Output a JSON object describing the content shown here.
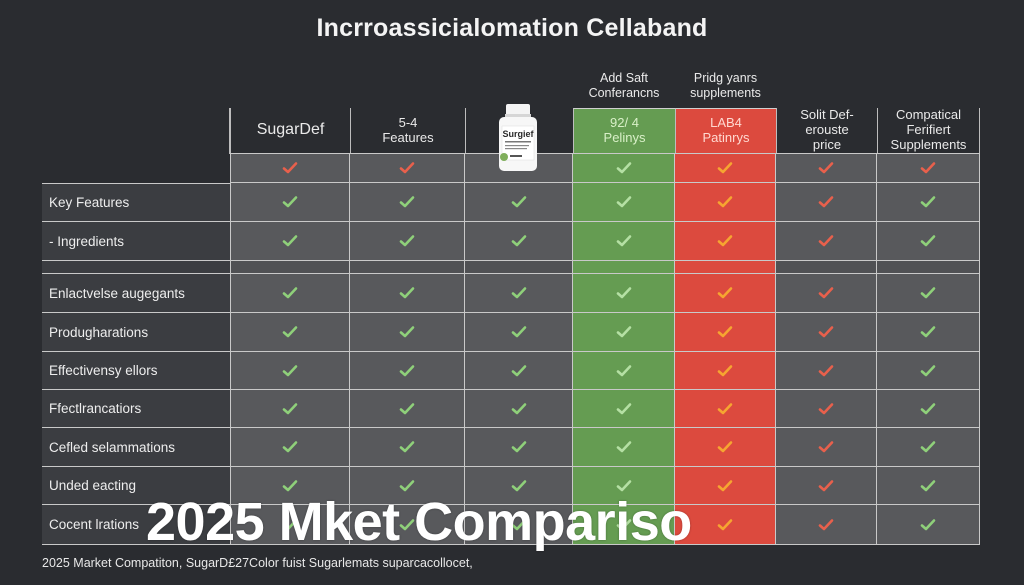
{
  "header": {
    "title": "Incrroassicialomation Cellaband"
  },
  "columns": [
    {
      "top_label": "",
      "label_line1": "SugarDef",
      "label_line2": "",
      "label_line3": "",
      "style": "default",
      "header_check": "red"
    },
    {
      "top_label": "",
      "label_line1": "5-4",
      "label_line2": "Features",
      "label_line3": "",
      "style": "default",
      "header_check": "red"
    },
    {
      "top_label": "",
      "label_line1": "",
      "label_line2": "",
      "label_line3": "",
      "style": "image",
      "image": "supplement-bottle",
      "image_label": "Surgief",
      "header_check": "none"
    },
    {
      "top_label_line1": "Add Saft",
      "top_label_line2": "Conferancns",
      "label_line1": "92/ 4",
      "label_line2": "Pelinys",
      "label_line3": "",
      "style": "green",
      "header_check": "green"
    },
    {
      "top_label_line1": "Pridg yanrs",
      "top_label_line2": "supplements",
      "label_line1": "LAB4",
      "label_line2": "Patinrys",
      "label_line3": "",
      "style": "red",
      "header_check": "orange"
    },
    {
      "top_label": "",
      "label_line1": "Solit Def-",
      "label_line2": "erouste",
      "label_line3": "price",
      "style": "default",
      "header_check": "red"
    },
    {
      "top_label": "",
      "label_line1": "Compatical",
      "label_line2": "Ferifiert",
      "label_line3": "Supplements",
      "style": "default",
      "header_check": "red"
    }
  ],
  "rows": [
    {
      "label": "Key Features",
      "checks": [
        "green",
        "green",
        "green",
        "green",
        "orange",
        "red",
        "green"
      ]
    },
    {
      "label": "- Ingredients",
      "checks": [
        "green",
        "green",
        "green",
        "green",
        "orange",
        "red",
        "green"
      ]
    },
    {
      "label": "Enlactvelse augegants",
      "checks": [
        "green",
        "green",
        "green",
        "green",
        "orange",
        "red",
        "green"
      ]
    },
    {
      "label": "Produgharations",
      "checks": [
        "green",
        "green",
        "green",
        "green",
        "orange",
        "red",
        "green"
      ]
    },
    {
      "label": "Effectivensy ellors",
      "checks": [
        "green",
        "green",
        "green",
        "green",
        "orange",
        "red",
        "green"
      ]
    },
    {
      "label": "Ffectlrancatiors",
      "checks": [
        "green",
        "green",
        "green",
        "green",
        "orange",
        "red",
        "green"
      ]
    },
    {
      "label": "Cefled selammations",
      "checks": [
        "green",
        "green",
        "green",
        "green",
        "orange",
        "red",
        "green"
      ]
    },
    {
      "label": "Unded eacting",
      "checks": [
        "green",
        "green",
        "green",
        "green",
        "orange",
        "red",
        "green"
      ]
    },
    {
      "label": "Cocent lrations",
      "checks": [
        "green",
        "green",
        "green",
        "green",
        "orange",
        "red",
        "green"
      ]
    }
  ],
  "colors": {
    "background": "#2a2c30",
    "cell": "#58595c",
    "label_cell": "#3b3d41",
    "green_column": "#659c52",
    "red_column": "#dc4a3e",
    "check_green": "#8fd07a",
    "check_red": "#e8604c",
    "check_orange": "#f6a531",
    "check_light_green": "#b5e0a4"
  },
  "overlay": {
    "title": "2025 Mket Compariso"
  },
  "footer": {
    "caption": "2025 Market Compatiton, SugarD£27Color fuist Sugarlemats suparcacollocet,"
  }
}
